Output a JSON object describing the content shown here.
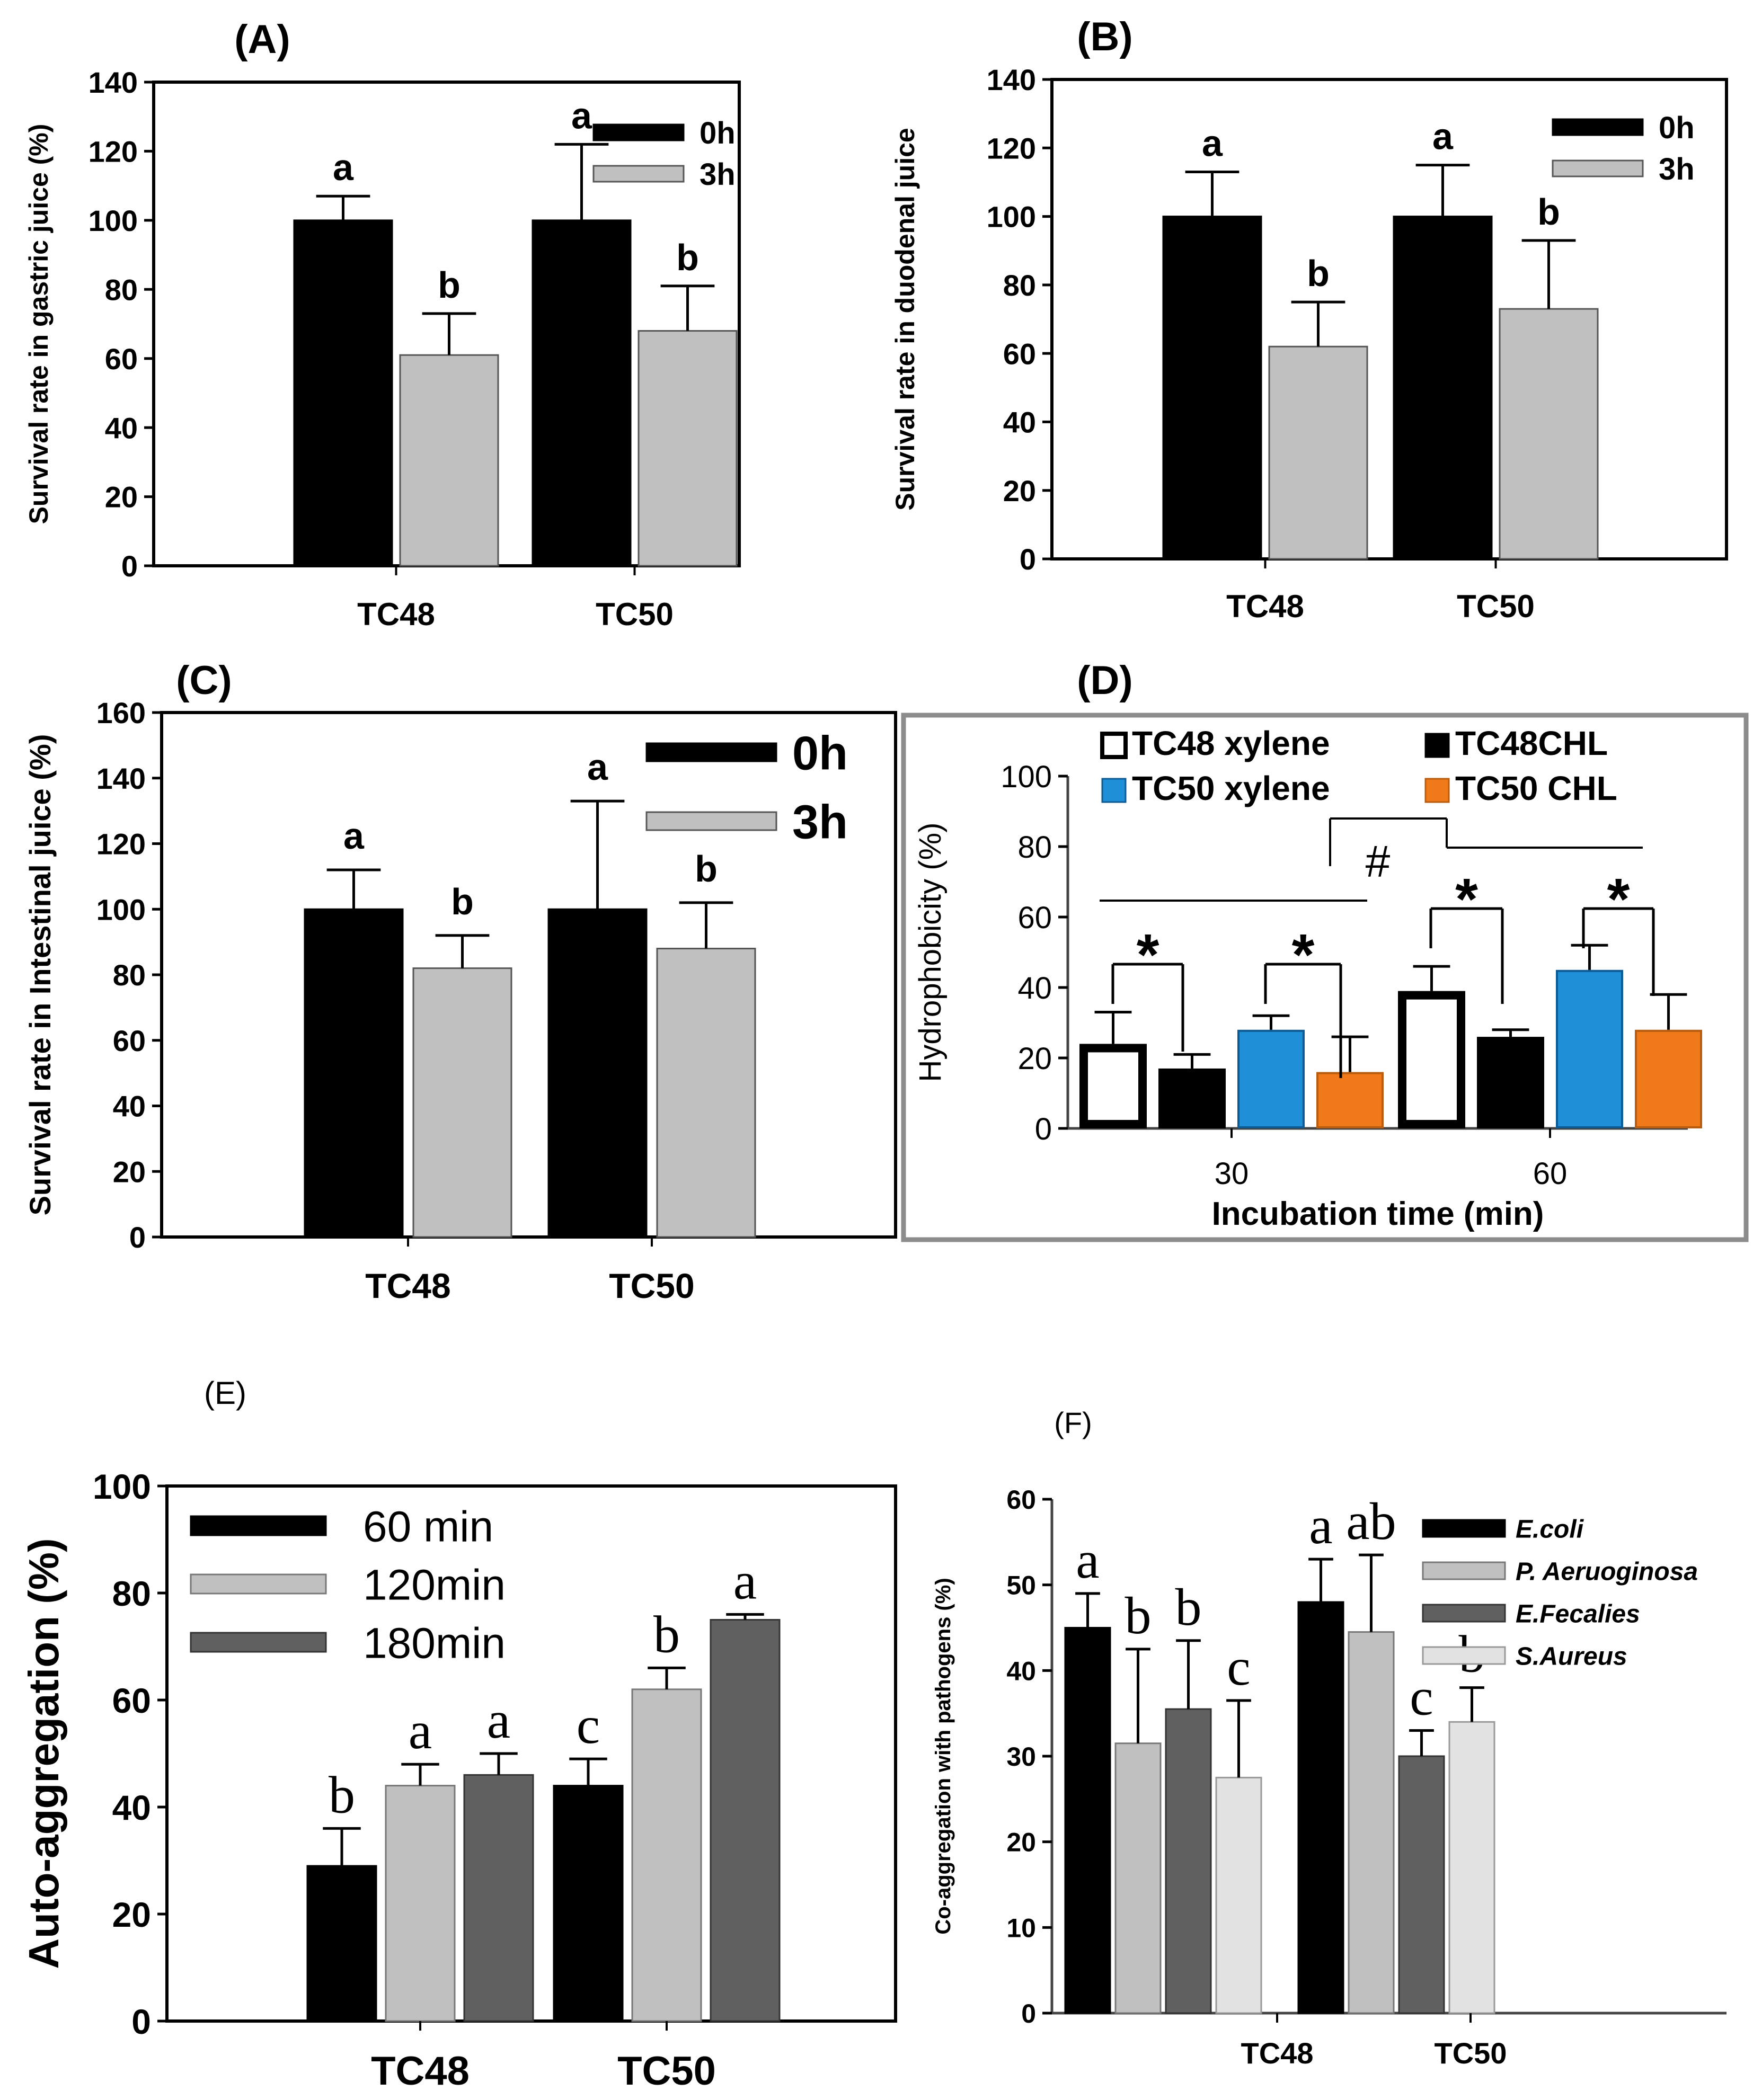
{
  "figure": {
    "colors": {
      "black": "#000000",
      "light_gray": "#c0c0c0",
      "dark_gray": "#606060",
      "very_light_gray": "#e2e2e2",
      "blue": "#1f8fd8",
      "orange": "#f07a1a",
      "white": "#ffffff",
      "frame_gray": "#8c8c8c"
    }
  },
  "chart_data": [
    {
      "id": "A",
      "panel_label": "(A)",
      "type": "bar",
      "categories": [
        "TC48",
        "TC50"
      ],
      "series": [
        {
          "name": "0h",
          "values": [
            100,
            100
          ],
          "errors": [
            7,
            22
          ],
          "letters": [
            "a",
            "a"
          ]
        },
        {
          "name": "3h",
          "values": [
            61,
            68
          ],
          "errors": [
            12,
            13
          ],
          "letters": [
            "b",
            "b"
          ]
        }
      ],
      "ylabel": "Survival rate in gastric juice (%)",
      "xlabel": "",
      "ylim": [
        0,
        140
      ],
      "yticks": [
        0,
        20,
        40,
        60,
        80,
        100,
        120,
        140
      ],
      "ytick_labels": [
        "0",
        "20",
        "40",
        "60",
        "80",
        "100",
        "120",
        "140"
      ],
      "legend": {
        "position": "top-right",
        "labels": [
          "0h",
          "3h"
        ]
      }
    },
    {
      "id": "B",
      "panel_label": "(B)",
      "type": "bar",
      "categories": [
        "TC48",
        "TC50"
      ],
      "series": [
        {
          "name": "0h",
          "values": [
            100,
            100
          ],
          "errors": [
            13,
            15
          ],
          "letters": [
            "a",
            "a"
          ]
        },
        {
          "name": "3h",
          "values": [
            62,
            73
          ],
          "errors": [
            13,
            20
          ],
          "letters": [
            "b",
            "b"
          ]
        }
      ],
      "ylabel": "Survival rate in duodenal juice",
      "xlabel": "",
      "ylim": [
        0,
        140
      ],
      "yticks": [
        0,
        20,
        40,
        60,
        80,
        100,
        120,
        140
      ],
      "ytick_labels": [
        "0",
        "20",
        "40",
        "60",
        "80",
        "100",
        "120",
        "140"
      ],
      "legend": {
        "position": "top-right",
        "labels": [
          "0h",
          "3h"
        ]
      }
    },
    {
      "id": "C",
      "panel_label": "(C)",
      "type": "bar",
      "categories": [
        "TC48",
        "TC50"
      ],
      "series": [
        {
          "name": "0h",
          "values": [
            100,
            100
          ],
          "errors": [
            12,
            33
          ],
          "letters": [
            "a",
            "a"
          ]
        },
        {
          "name": "3h",
          "values": [
            82,
            88
          ],
          "errors": [
            10,
            14
          ],
          "letters": [
            "b",
            "b"
          ]
        }
      ],
      "ylabel": "Survival rate in Intestinal juice (%)",
      "xlabel": "",
      "ylim": [
        0,
        160
      ],
      "yticks": [
        0,
        20,
        40,
        60,
        80,
        100,
        120,
        140,
        160
      ],
      "ytick_labels": [
        "0",
        "20",
        "40",
        "60",
        "80",
        "100",
        "120",
        "140",
        "160"
      ],
      "legend": {
        "position": "top-right",
        "labels": [
          "0h",
          "3h"
        ]
      }
    },
    {
      "id": "D",
      "panel_label": "(D)",
      "type": "bar",
      "categories": [
        "30",
        "60"
      ],
      "series": [
        {
          "name": "TC48 xylene",
          "values": [
            24,
            39
          ],
          "errors": [
            9,
            7
          ]
        },
        {
          "name": "TC48CHL",
          "values": [
            17,
            26
          ],
          "errors": [
            4,
            2
          ]
        },
        {
          "name": "TC50 xylene",
          "values": [
            28,
            45
          ],
          "errors": [
            4,
            7
          ]
        },
        {
          "name": "TC50 CHL",
          "values": [
            16,
            28
          ],
          "errors": [
            10,
            10
          ]
        }
      ],
      "ylabel": "Hydrophobicity (%)",
      "xlabel": "Incubation time   (min)",
      "ylim": [
        0,
        100
      ],
      "yticks": [
        0,
        20,
        40,
        60,
        80,
        100
      ],
      "ytick_labels": [
        "0",
        "20",
        "40",
        "60",
        "80",
        "100"
      ],
      "annotations": {
        "star": "*",
        "hash": "#"
      },
      "legend": {
        "position": "top",
        "labels": [
          "TC48 xylene",
          "TC48CHL",
          "TC50 xylene",
          "TC50 CHL"
        ]
      }
    },
    {
      "id": "E",
      "panel_label": "(E)",
      "type": "bar",
      "categories": [
        "TC48",
        "TC50"
      ],
      "series": [
        {
          "name": "60 min",
          "values": [
            29,
            44
          ],
          "errors": [
            7,
            5
          ],
          "letters": [
            "b",
            "c"
          ]
        },
        {
          "name": "120min",
          "values": [
            44,
            62
          ],
          "errors": [
            4,
            4
          ],
          "letters": [
            "a",
            "b"
          ]
        },
        {
          "name": "180min",
          "values": [
            46,
            75
          ],
          "errors": [
            4,
            1
          ],
          "letters": [
            "a",
            "a"
          ]
        }
      ],
      "ylabel": "Auto-aggregation (%)",
      "xlabel": "",
      "ylim": [
        0,
        100
      ],
      "yticks": [
        0,
        20,
        40,
        60,
        80,
        100
      ],
      "ytick_labels": [
        "0",
        "20",
        "40",
        "60",
        "80",
        "100"
      ],
      "legend": {
        "position": "top-left",
        "labels": [
          "60 min",
          "120min",
          "180min"
        ]
      }
    },
    {
      "id": "F",
      "panel_label": "(F)",
      "type": "bar",
      "categories": [
        "TC48",
        "TC50"
      ],
      "series": [
        {
          "name": "E.coli",
          "values": [
            45,
            48
          ],
          "errors": [
            4,
            5
          ],
          "letters": [
            "a",
            "a"
          ]
        },
        {
          "name": "P. Aeruoginosa",
          "values": [
            31.5,
            44.5
          ],
          "errors": [
            11,
            9
          ],
          "letters": [
            "b",
            "ab"
          ]
        },
        {
          "name": "E.Fecalies",
          "values": [
            35.5,
            30
          ],
          "errors": [
            8,
            3
          ],
          "letters": [
            "b",
            "c"
          ]
        },
        {
          "name": "S.Aureus",
          "values": [
            27.5,
            34
          ],
          "errors": [
            9,
            4
          ],
          "letters": [
            "c",
            "b"
          ]
        }
      ],
      "ylabel": "Co-aggregation with pathogens (%)",
      "xlabel": "",
      "ylim": [
        0,
        60
      ],
      "yticks": [
        0,
        10,
        20,
        30,
        40,
        50,
        60
      ],
      "ytick_labels": [
        "0",
        "10",
        "20",
        "30",
        "40",
        "50",
        "60"
      ],
      "legend": {
        "position": "top-right",
        "labels": [
          "E.coli",
          "P. Aeruoginosa",
          "E.Fecalies",
          "S.Aureus"
        ]
      }
    }
  ]
}
